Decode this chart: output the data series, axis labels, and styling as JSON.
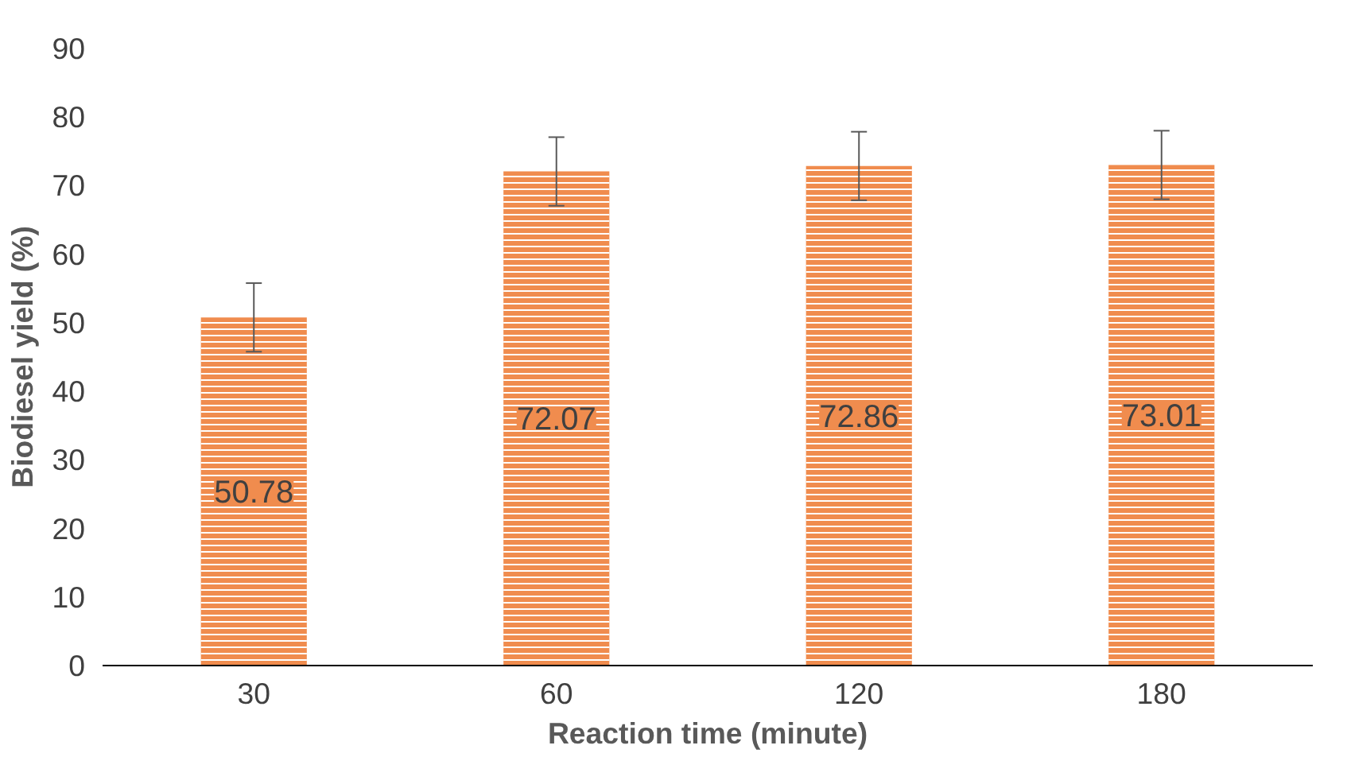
{
  "chart_data": {
    "type": "bar",
    "xlabel": "Reaction time (minute)",
    "ylabel": "Biodiesel yield (%)",
    "categories": [
      "30",
      "60",
      "120",
      "180"
    ],
    "values": [
      50.78,
      72.07,
      72.86,
      73.01
    ],
    "errors": [
      5,
      5,
      5,
      5
    ],
    "color": "#f08c4e",
    "data_labels": true,
    "ylim": [
      0,
      90
    ],
    "yticks": [
      0,
      10,
      20,
      30,
      40,
      50,
      60,
      70,
      80,
      90
    ],
    "grid": false
  }
}
